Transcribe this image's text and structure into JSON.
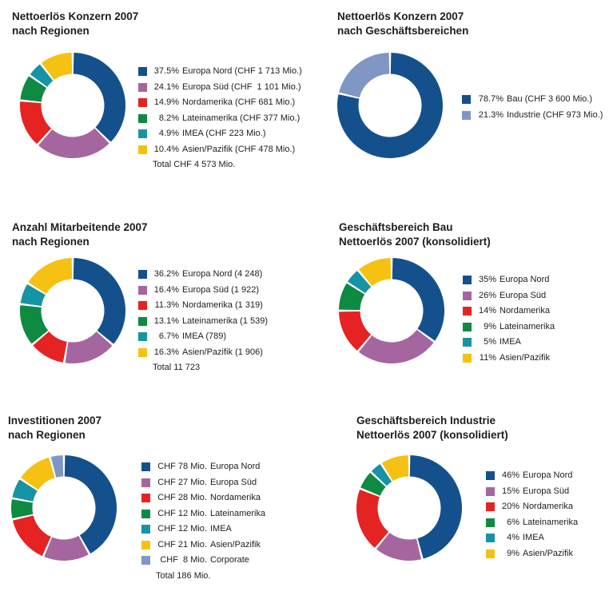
{
  "page": {
    "background": "#ffffff",
    "text_color": "#1d1d1b"
  },
  "colors": {
    "europa_nord": "#14508c",
    "europa_sued": "#a5669f",
    "nordamerika": "#e52322",
    "lateinamerika": "#0e8a43",
    "imea": "#1693a5",
    "asien_pazifik": "#f5c213",
    "corporate": "#8097c4",
    "bau": "#14508c",
    "industrie": "#8097c4"
  },
  "chart_data": [
    {
      "id": "nettoerloes-konzern-2007-nach-regionen",
      "type": "pie",
      "variant": "donut",
      "legend_position": "right",
      "start_angle_deg": 0,
      "direction": "clockwise",
      "title_lines": [
        "Nettoerlös Konzern 2007",
        "nach Regionen"
      ],
      "slices": [
        {
          "value": 37.5,
          "value_label": "37.5%",
          "label": "Europa Nord (CHF 1 713 Mio.)",
          "color_key": "europa_nord"
        },
        {
          "value": 24.1,
          "value_label": "24.1%",
          "label": "Europa Süd (CHF  1 101 Mio.)",
          "color_key": "europa_sued"
        },
        {
          "value": 14.9,
          "value_label": "14.9%",
          "label": "Nordamerika (CHF 681 Mio.)",
          "color_key": "nordamerika"
        },
        {
          "value": 8.2,
          "value_label": "8.2%",
          "label": "Lateinamerika (CHF 377 Mio.)",
          "color_key": "lateinamerika"
        },
        {
          "value": 4.9,
          "value_label": "4.9%",
          "label": "IMEA (CHF 223 Mio.)",
          "color_key": "imea"
        },
        {
          "value": 10.4,
          "value_label": "10.4%",
          "label": "Asien/Pazifik (CHF 478 Mio.)",
          "color_key": "asien_pazifik"
        }
      ],
      "total_label": "Total CHF 4 573 Mio."
    },
    {
      "id": "nettoerloes-konzern-2007-nach-geschaeftsbereichen",
      "type": "pie",
      "variant": "donut",
      "legend_position": "right",
      "start_angle_deg": 0,
      "direction": "clockwise",
      "title_lines": [
        "Nettoerlös Konzern 2007",
        "nach Geschäftsbereichen"
      ],
      "slices": [
        {
          "value": 78.7,
          "value_label": "78.7%",
          "label": "Bau (CHF 3 600 Mio.)",
          "color_key": "bau"
        },
        {
          "value": 21.3,
          "value_label": "21.3%",
          "label": "Industrie (CHF 973 Mio.)",
          "color_key": "industrie"
        }
      ]
    },
    {
      "id": "anzahl-mitarbeitende-2007-nach-regionen",
      "type": "pie",
      "variant": "donut",
      "legend_position": "right",
      "start_angle_deg": 0,
      "direction": "clockwise",
      "title_lines": [
        "Anzahl Mitarbeitende 2007",
        "nach Regionen"
      ],
      "slices": [
        {
          "value": 36.2,
          "value_label": "36.2%",
          "label": "Europa Nord (4 248)",
          "color_key": "europa_nord"
        },
        {
          "value": 16.4,
          "value_label": "16.4%",
          "label": "Europa Süd (1 922)",
          "color_key": "europa_sued"
        },
        {
          "value": 11.3,
          "value_label": "11.3%",
          "label": "Nordamerika (1 319)",
          "color_key": "nordamerika"
        },
        {
          "value": 13.1,
          "value_label": "13.1%",
          "label": "Lateinamerika (1 539)",
          "color_key": "lateinamerika"
        },
        {
          "value": 6.7,
          "value_label": "6.7%",
          "label": "IMEA (789)",
          "color_key": "imea"
        },
        {
          "value": 16.3,
          "value_label": "16.3%",
          "label": "Asien/Pazifik (1 906)",
          "color_key": "asien_pazifik"
        }
      ],
      "total_label": "Total 11 723"
    },
    {
      "id": "geschaeftsbereich-bau-nettoerloes-2007-konsolidiert",
      "type": "pie",
      "variant": "donut",
      "legend_position": "right",
      "start_angle_deg": 0,
      "direction": "clockwise",
      "title_lines": [
        "Geschäftsbereich Bau",
        "Nettoerlös 2007 (konsolidiert)"
      ],
      "slices": [
        {
          "value": 35,
          "value_label": "35%",
          "label": "Europa Nord",
          "color_key": "europa_nord"
        },
        {
          "value": 26,
          "value_label": "26%",
          "label": "Europa Süd",
          "color_key": "europa_sued"
        },
        {
          "value": 14,
          "value_label": "14%",
          "label": "Nordamerika",
          "color_key": "nordamerika"
        },
        {
          "value": 9,
          "value_label": "9%",
          "label": "Lateinamerika",
          "color_key": "lateinamerika"
        },
        {
          "value": 5,
          "value_label": "5%",
          "label": "IMEA",
          "color_key": "imea"
        },
        {
          "value": 11,
          "value_label": "11%",
          "label": "Asien/Pazifik",
          "color_key": "asien_pazifik"
        }
      ]
    },
    {
      "id": "investitionen-2007-nach-regionen",
      "type": "pie",
      "variant": "donut",
      "legend_position": "right",
      "start_angle_deg": 0,
      "direction": "clockwise",
      "unit": "CHF Mio.",
      "title_lines": [
        "Investitionen 2007",
        "nach Regionen"
      ],
      "slices": [
        {
          "value": 78,
          "value_label": "CHF 78 Mio.",
          "label": "Europa Nord",
          "color_key": "europa_nord"
        },
        {
          "value": 27,
          "value_label": "CHF 27 Mio.",
          "label": "Europa Süd",
          "color_key": "europa_sued"
        },
        {
          "value": 28,
          "value_label": "CHF 28 Mio.",
          "label": "Nordamerika",
          "color_key": "nordamerika"
        },
        {
          "value": 12,
          "value_label": "CHF 12 Mio.",
          "label": "Lateinamerika",
          "color_key": "lateinamerika"
        },
        {
          "value": 12,
          "value_label": "CHF 12 Mio.",
          "label": "IMEA",
          "color_key": "imea"
        },
        {
          "value": 21,
          "value_label": "CHF 21 Mio.",
          "label": "Asien/Pazifik",
          "color_key": "asien_pazifik"
        },
        {
          "value": 8,
          "value_label": "CHF  8 Mio.",
          "label": "Corporate",
          "color_key": "corporate"
        }
      ],
      "total_label": "Total 186 Mio."
    },
    {
      "id": "geschaeftsbereich-industrie-nettoerloes-2007-konsolidiert",
      "type": "pie",
      "variant": "donut",
      "legend_position": "right",
      "start_angle_deg": 0,
      "direction": "clockwise",
      "title_lines": [
        "Geschäftsbereich Industrie",
        "Nettoerlös 2007 (konsolidiert)"
      ],
      "slices": [
        {
          "value": 46,
          "value_label": "46%",
          "label": "Europa Nord",
          "color_key": "europa_nord"
        },
        {
          "value": 15,
          "value_label": "15%",
          "label": "Europa Süd",
          "color_key": "europa_sued"
        },
        {
          "value": 20,
          "value_label": "20%",
          "label": "Nordamerika",
          "color_key": "nordamerika"
        },
        {
          "value": 6,
          "value_label": "6%",
          "label": "Lateinamerika",
          "color_key": "lateinamerika"
        },
        {
          "value": 4,
          "value_label": "4%",
          "label": "IMEA",
          "color_key": "imea"
        },
        {
          "value": 9,
          "value_label": "9%",
          "label": "Asien/Pazifik",
          "color_key": "asien_pazifik"
        }
      ]
    }
  ]
}
